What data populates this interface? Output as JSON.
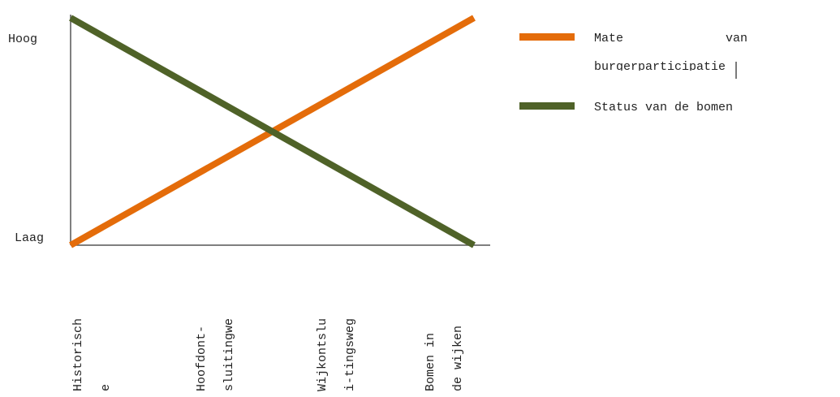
{
  "chart_data": {
    "type": "line",
    "title": "",
    "xlabel": "",
    "ylabel": "",
    "categories": [
      [
        "Historisch",
        "e"
      ],
      [
        "Hoofdont-",
        "sluitingwe"
      ],
      [
        "Wijkontslu",
        "i-tingsweg"
      ],
      [
        "Bomen   in",
        "de wijken"
      ]
    ],
    "y_tick_labels": {
      "high": "Hoog",
      "low": "Laag"
    },
    "ylim": [
      0,
      1
    ],
    "grid": false,
    "legend_position": "right",
    "series": [
      {
        "name": "Mate van burgerparticipatie",
        "legend_line1": "Mate              van",
        "legend_line2": "burgerparticipatie",
        "color": "#E46C0A",
        "x": [
          0,
          1
        ],
        "y": [
          0,
          1
        ]
      },
      {
        "name": "Status van de bomen",
        "legend_line1": "Status van de bomen",
        "color": "#4F6228",
        "x": [
          0,
          1
        ],
        "y": [
          1,
          0
        ]
      }
    ]
  }
}
